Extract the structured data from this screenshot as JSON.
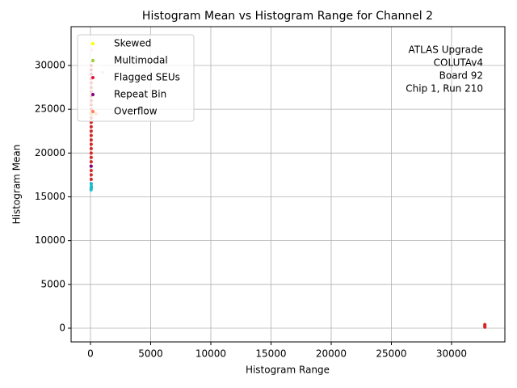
{
  "chart_data": {
    "type": "scatter",
    "title": "Histogram Mean vs Histogram Range for Channel 2",
    "x_label": "Histogram Range",
    "y_label": "Histogram Mean",
    "annotation": [
      "ATLAS Upgrade",
      "COLUTAv4",
      "Board 92",
      "Chip 1, Run 210"
    ],
    "xlim": [
      -1610,
      34430
    ],
    "ylim": [
      -1570,
      34430
    ],
    "xticks": [
      0,
      5000,
      10000,
      15000,
      20000,
      25000,
      30000
    ],
    "yticks": [
      0,
      5000,
      10000,
      15000,
      20000,
      25000,
      30000
    ],
    "grid": true,
    "legend": "upper left",
    "series": [
      {
        "color": "#d62728",
        "x": [
          60,
          60,
          60,
          60,
          60,
          60,
          60,
          60,
          60,
          60,
          60,
          60,
          60,
          60,
          60,
          60,
          60,
          60,
          60,
          60,
          60,
          60,
          60,
          60,
          60,
          60,
          60,
          60,
          60,
          32767,
          32767,
          32767,
          32767
        ],
        "values": [
          16000,
          16500,
          17000,
          17500,
          18000,
          18500,
          19000,
          19500,
          20000,
          20500,
          21000,
          21500,
          22000,
          22500,
          23000,
          23500,
          24000,
          24500,
          25000,
          25500,
          26000,
          26500,
          27000,
          27500,
          28000,
          28500,
          29000,
          29500,
          30000,
          120,
          220,
          320,
          420
        ]
      },
      {
        "color": "#17becf",
        "x": [
          50,
          60,
          70,
          60
        ],
        "values": [
          15800,
          16000,
          16200,
          16500
        ]
      },
      {
        "color": "#ffb6c1",
        "x": [
          1000,
          150,
          120
        ],
        "values": [
          29200,
          30500,
          31800
        ]
      },
      {
        "name": "Skewed",
        "color": "#ffff00",
        "x": [
          100
        ],
        "values": [
          32500
        ]
      },
      {
        "name": "Multimodal",
        "color": "#9acd32",
        "x": [
          120
        ],
        "values": [
          24400
        ]
      },
      {
        "name": "Flagged SEUs",
        "color": "#dc143c",
        "x": [
          50
        ],
        "values": [
          28500
        ]
      },
      {
        "name": "Repeat Bin",
        "color": "#800080",
        "x": [
          50
        ],
        "values": [
          18500
        ]
      },
      {
        "name": "Overflow",
        "color": "#ff7f50",
        "x": [
          100,
          450
        ],
        "values": [
          24600,
          24500
        ]
      }
    ]
  }
}
